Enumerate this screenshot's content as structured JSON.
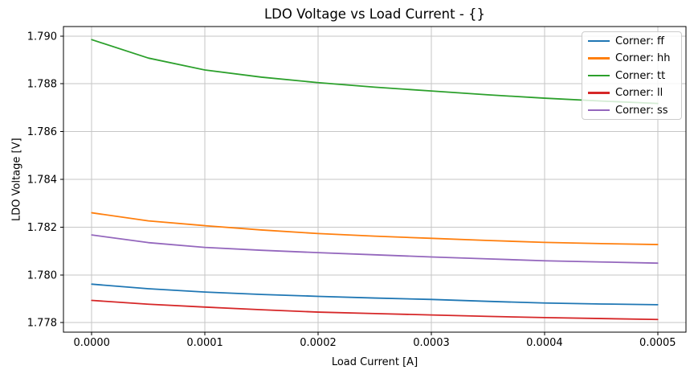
{
  "figure": {
    "background": "#ffffff",
    "spine_color": "#000000",
    "text_color": "#000000"
  },
  "chart_data": {
    "type": "line",
    "title": "LDO Voltage vs Load Current - {}",
    "xlabel": "Load Current [A]",
    "ylabel": "LDO Voltage [V]",
    "grid": true,
    "grid_color": "#c6c6c6",
    "legend_position": "upper right",
    "xlim": [
      -2.5e-05,
      0.000525
    ],
    "ylim": [
      1.7776,
      1.7904
    ],
    "x_ticks": [
      0.0,
      0.0001,
      0.0002,
      0.0003,
      0.0004,
      0.0005
    ],
    "x_tick_labels": [
      "0.0000",
      "0.0001",
      "0.0002",
      "0.0003",
      "0.0004",
      "0.0005"
    ],
    "y_ticks": [
      1.778,
      1.78,
      1.782,
      1.784,
      1.786,
      1.788,
      1.79
    ],
    "y_tick_labels": [
      "1.778",
      "1.780",
      "1.782",
      "1.784",
      "1.786",
      "1.788",
      "1.790"
    ],
    "x": [
      0.0,
      5e-05,
      0.0001,
      0.00015,
      0.0002,
      0.00025,
      0.0003,
      0.00035,
      0.0004,
      0.00045,
      0.0005
    ],
    "series": [
      {
        "name": "ff",
        "legend_label": "Corner: ff",
        "color": "#1f77b4",
        "values": [
          1.77961,
          1.77942,
          1.77928,
          1.77918,
          1.7791,
          1.77903,
          1.77897,
          1.77889,
          1.77882,
          1.77878,
          1.77875
        ]
      },
      {
        "name": "hh",
        "legend_label": "Corner: hh",
        "color": "#ff7f0e",
        "values": [
          1.7826,
          1.78226,
          1.78206,
          1.78188,
          1.78173,
          1.78162,
          1.78153,
          1.78144,
          1.78136,
          1.78131,
          1.78127
        ]
      },
      {
        "name": "tt",
        "legend_label": "Corner: tt",
        "color": "#2ca02c",
        "values": [
          1.78985,
          1.78908,
          1.78858,
          1.78828,
          1.78805,
          1.78786,
          1.7877,
          1.78754,
          1.7874,
          1.78728,
          1.78718
        ]
      },
      {
        "name": "ll",
        "legend_label": "Corner: ll",
        "color": "#d62728",
        "values": [
          1.77893,
          1.77877,
          1.77865,
          1.77854,
          1.77844,
          1.77838,
          1.77832,
          1.77826,
          1.77821,
          1.77817,
          1.77813
        ]
      },
      {
        "name": "ss",
        "legend_label": "Corner: ss",
        "color": "#9467bd",
        "values": [
          1.78167,
          1.78135,
          1.78115,
          1.78103,
          1.78093,
          1.78084,
          1.78075,
          1.78067,
          1.78059,
          1.78054,
          1.78049
        ]
      }
    ]
  }
}
